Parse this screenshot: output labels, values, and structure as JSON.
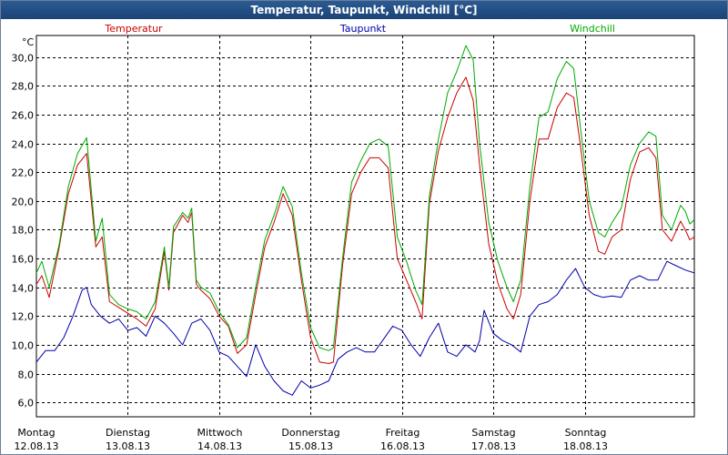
{
  "chart_data": {
    "type": "line",
    "title": "Temperatur, Taupunkt, Windchill [°C]",
    "ylabel": "°C",
    "ylim": [
      5,
      31.5
    ],
    "yticks": [
      "6,0",
      "8,0",
      "10,0",
      "12,0",
      "14,0",
      "16,0",
      "18,0",
      "20,0",
      "22,0",
      "24,0",
      "26,0",
      "28,0",
      "30,0"
    ],
    "ytick_values": [
      6,
      8,
      10,
      12,
      14,
      16,
      18,
      20,
      22,
      24,
      26,
      28,
      30
    ],
    "xlim": [
      0,
      7.2
    ],
    "xticks": [
      {
        "x": 0,
        "day": "Montag",
        "date": "12.08.13"
      },
      {
        "x": 1,
        "day": "Dienstag",
        "date": "13.08.13"
      },
      {
        "x": 2,
        "day": "Mittwoch",
        "date": "14.08.13"
      },
      {
        "x": 3,
        "day": "Donnerstag",
        "date": "15.08.13"
      },
      {
        "x": 4,
        "day": "Freitag",
        "date": "16.08.13"
      },
      {
        "x": 5,
        "day": "Samstag",
        "date": "17.08.13"
      },
      {
        "x": 6,
        "day": "Sonntag",
        "date": "18.08.13"
      }
    ],
    "grid": true,
    "series": [
      {
        "name": "Temperatur",
        "color": "#cc0000",
        "points": [
          [
            0,
            14.2
          ],
          [
            0.06,
            14.8
          ],
          [
            0.14,
            13.3
          ],
          [
            0.25,
            16.8
          ],
          [
            0.35,
            20.5
          ],
          [
            0.45,
            22.5
          ],
          [
            0.55,
            23.3
          ],
          [
            0.65,
            16.8
          ],
          [
            0.72,
            17.5
          ],
          [
            0.8,
            13
          ],
          [
            0.9,
            12.6
          ],
          [
            1,
            12.2
          ],
          [
            1.1,
            11.8
          ],
          [
            1.2,
            11.3
          ],
          [
            1.3,
            12.5
          ],
          [
            1.4,
            16.5
          ],
          [
            1.45,
            13.8
          ],
          [
            1.5,
            17.8
          ],
          [
            1.6,
            19
          ],
          [
            1.66,
            18.5
          ],
          [
            1.7,
            19.2
          ],
          [
            1.75,
            14.2
          ],
          [
            1.8,
            13.8
          ],
          [
            1.9,
            13.2
          ],
          [
            2,
            12
          ],
          [
            2.1,
            11.3
          ],
          [
            2.2,
            9.4
          ],
          [
            2.3,
            10
          ],
          [
            2.4,
            13.5
          ],
          [
            2.5,
            16.8
          ],
          [
            2.6,
            18.5
          ],
          [
            2.7,
            20.5
          ],
          [
            2.8,
            19
          ],
          [
            2.9,
            14.5
          ],
          [
            3,
            10.5
          ],
          [
            3.1,
            8.8
          ],
          [
            3.2,
            8.7
          ],
          [
            3.25,
            8.8
          ],
          [
            3.35,
            15.5
          ],
          [
            3.45,
            20.5
          ],
          [
            3.55,
            22
          ],
          [
            3.65,
            23
          ],
          [
            3.75,
            23
          ],
          [
            3.85,
            22.3
          ],
          [
            3.95,
            16
          ],
          [
            4.05,
            14.5
          ],
          [
            4.15,
            13
          ],
          [
            4.22,
            11.8
          ],
          [
            4.3,
            19.8
          ],
          [
            4.4,
            23.5
          ],
          [
            4.5,
            25.8
          ],
          [
            4.6,
            27.5
          ],
          [
            4.7,
            28.6
          ],
          [
            4.78,
            27
          ],
          [
            4.85,
            22.5
          ],
          [
            4.95,
            17
          ],
          [
            5.05,
            14.3
          ],
          [
            5.15,
            12.5
          ],
          [
            5.22,
            11.8
          ],
          [
            5.3,
            13.5
          ],
          [
            5.4,
            20
          ],
          [
            5.5,
            24.3
          ],
          [
            5.6,
            24.3
          ],
          [
            5.7,
            26.5
          ],
          [
            5.8,
            27.5
          ],
          [
            5.88,
            27.2
          ],
          [
            5.95,
            24
          ],
          [
            6.05,
            19
          ],
          [
            6.15,
            16.5
          ],
          [
            6.22,
            16.3
          ],
          [
            6.3,
            17.5
          ],
          [
            6.4,
            18
          ],
          [
            6.5,
            21.5
          ],
          [
            6.6,
            23.4
          ],
          [
            6.7,
            23.7
          ],
          [
            6.78,
            23
          ],
          [
            6.85,
            18
          ],
          [
            6.95,
            17.2
          ],
          [
            7.05,
            18.6
          ],
          [
            7.1,
            18
          ],
          [
            7.15,
            17.3
          ],
          [
            7.2,
            17.5
          ]
        ]
      },
      {
        "name": "Taupunkt",
        "color": "#0000aa",
        "points": [
          [
            0,
            8.8
          ],
          [
            0.1,
            9.6
          ],
          [
            0.2,
            9.6
          ],
          [
            0.3,
            10.5
          ],
          [
            0.4,
            12
          ],
          [
            0.5,
            13.8
          ],
          [
            0.55,
            14
          ],
          [
            0.6,
            12.8
          ],
          [
            0.7,
            12
          ],
          [
            0.8,
            11.5
          ],
          [
            0.9,
            11.8
          ],
          [
            1,
            11
          ],
          [
            1.1,
            11.2
          ],
          [
            1.2,
            10.6
          ],
          [
            1.3,
            12
          ],
          [
            1.4,
            11.5
          ],
          [
            1.5,
            10.8
          ],
          [
            1.6,
            10
          ],
          [
            1.7,
            11.5
          ],
          [
            1.8,
            11.8
          ],
          [
            1.9,
            11
          ],
          [
            2,
            9.5
          ],
          [
            2.1,
            9.2
          ],
          [
            2.2,
            8.5
          ],
          [
            2.3,
            7.8
          ],
          [
            2.4,
            10
          ],
          [
            2.5,
            8.5
          ],
          [
            2.6,
            7.5
          ],
          [
            2.7,
            6.8
          ],
          [
            2.8,
            6.5
          ],
          [
            2.9,
            7.5
          ],
          [
            3,
            7
          ],
          [
            3.1,
            7.2
          ],
          [
            3.2,
            7.5
          ],
          [
            3.3,
            9
          ],
          [
            3.4,
            9.5
          ],
          [
            3.5,
            9.8
          ],
          [
            3.6,
            9.5
          ],
          [
            3.7,
            9.5
          ],
          [
            3.8,
            10.4
          ],
          [
            3.9,
            11.3
          ],
          [
            4,
            11
          ],
          [
            4.1,
            10
          ],
          [
            4.2,
            9.2
          ],
          [
            4.3,
            10.5
          ],
          [
            4.4,
            11.5
          ],
          [
            4.5,
            9.5
          ],
          [
            4.6,
            9.2
          ],
          [
            4.7,
            10
          ],
          [
            4.8,
            9.5
          ],
          [
            4.85,
            10.3
          ],
          [
            4.9,
            12.4
          ],
          [
            5,
            10.8
          ],
          [
            5.1,
            10.3
          ],
          [
            5.2,
            10
          ],
          [
            5.3,
            9.5
          ],
          [
            5.4,
            12
          ],
          [
            5.5,
            12.8
          ],
          [
            5.6,
            13
          ],
          [
            5.7,
            13.5
          ],
          [
            5.8,
            14.5
          ],
          [
            5.9,
            15.3
          ],
          [
            6,
            14
          ],
          [
            6.1,
            13.5
          ],
          [
            6.2,
            13.3
          ],
          [
            6.3,
            13.4
          ],
          [
            6.4,
            13.3
          ],
          [
            6.5,
            14.5
          ],
          [
            6.6,
            14.8
          ],
          [
            6.7,
            14.5
          ],
          [
            6.8,
            14.5
          ],
          [
            6.9,
            15.8
          ],
          [
            7,
            15.5
          ],
          [
            7.1,
            15.2
          ],
          [
            7.2,
            15
          ]
        ]
      },
      {
        "name": "Windchill",
        "color": "#00aa00",
        "points": [
          [
            0,
            15
          ],
          [
            0.06,
            15.8
          ],
          [
            0.14,
            14
          ],
          [
            0.25,
            17
          ],
          [
            0.35,
            21
          ],
          [
            0.45,
            23.3
          ],
          [
            0.55,
            24.4
          ],
          [
            0.65,
            17.2
          ],
          [
            0.72,
            18.8
          ],
          [
            0.8,
            13.5
          ],
          [
            0.9,
            12.8
          ],
          [
            1,
            12.5
          ],
          [
            1.1,
            12.3
          ],
          [
            1.2,
            11.8
          ],
          [
            1.3,
            13
          ],
          [
            1.4,
            16.8
          ],
          [
            1.45,
            14
          ],
          [
            1.5,
            18.2
          ],
          [
            1.6,
            19.2
          ],
          [
            1.66,
            18.8
          ],
          [
            1.7,
            19.5
          ],
          [
            1.75,
            14.5
          ],
          [
            1.8,
            14
          ],
          [
            1.9,
            13.6
          ],
          [
            2,
            12.3
          ],
          [
            2.1,
            11.4
          ],
          [
            2.2,
            9.8
          ],
          [
            2.3,
            10.5
          ],
          [
            2.4,
            14
          ],
          [
            2.5,
            17.3
          ],
          [
            2.6,
            19
          ],
          [
            2.7,
            21
          ],
          [
            2.8,
            19.6
          ],
          [
            2.9,
            15
          ],
          [
            3,
            11.2
          ],
          [
            3.1,
            9.8
          ],
          [
            3.2,
            9.6
          ],
          [
            3.25,
            9.8
          ],
          [
            3.35,
            16
          ],
          [
            3.45,
            21.3
          ],
          [
            3.55,
            22.8
          ],
          [
            3.65,
            24
          ],
          [
            3.75,
            24.3
          ],
          [
            3.85,
            23.8
          ],
          [
            3.95,
            17.5
          ],
          [
            4.05,
            15.8
          ],
          [
            4.15,
            13.8
          ],
          [
            4.22,
            12.8
          ],
          [
            4.3,
            20.3
          ],
          [
            4.4,
            24.3
          ],
          [
            4.5,
            27.5
          ],
          [
            4.6,
            29
          ],
          [
            4.7,
            30.8
          ],
          [
            4.78,
            29.8
          ],
          [
            4.85,
            24
          ],
          [
            4.95,
            18.5
          ],
          [
            5.05,
            15.8
          ],
          [
            5.15,
            14
          ],
          [
            5.22,
            13
          ],
          [
            5.3,
            14.5
          ],
          [
            5.4,
            21
          ],
          [
            5.5,
            25.8
          ],
          [
            5.6,
            26.2
          ],
          [
            5.7,
            28.5
          ],
          [
            5.8,
            29.7
          ],
          [
            5.88,
            29.2
          ],
          [
            5.95,
            25.3
          ],
          [
            6.05,
            20
          ],
          [
            6.15,
            17.8
          ],
          [
            6.22,
            17.5
          ],
          [
            6.3,
            18.5
          ],
          [
            6.4,
            19.5
          ],
          [
            6.5,
            22.5
          ],
          [
            6.6,
            24
          ],
          [
            6.7,
            24.8
          ],
          [
            6.78,
            24.5
          ],
          [
            6.85,
            19
          ],
          [
            6.95,
            18
          ],
          [
            7.05,
            19.7
          ],
          [
            7.1,
            19.3
          ],
          [
            7.15,
            18.4
          ],
          [
            7.2,
            18.7
          ]
        ]
      }
    ]
  }
}
